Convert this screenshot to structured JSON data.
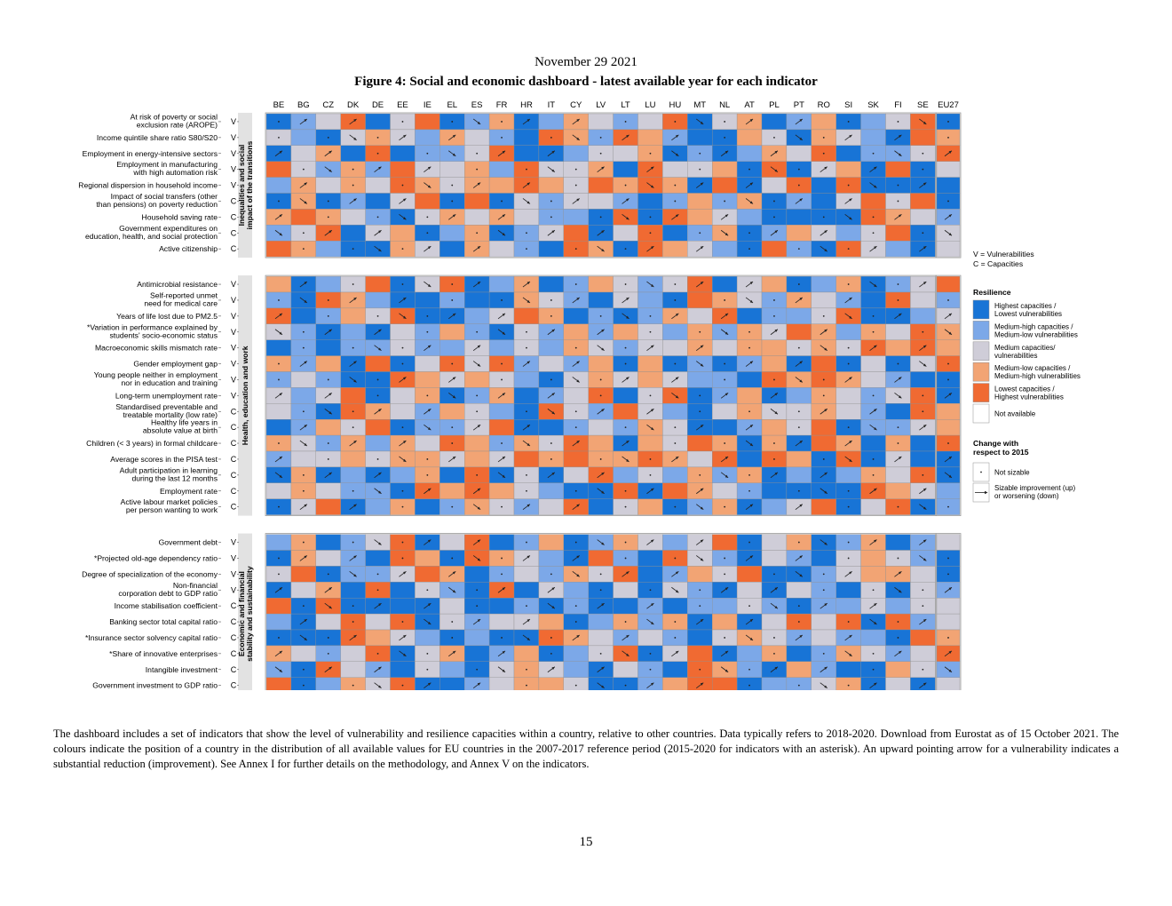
{
  "header": {
    "date": "November 29 2021",
    "title": "Figure 4: Social and economic dashboard - latest available year for each indicator"
  },
  "chart_data": {
    "type": "heatmap",
    "countries": [
      "BE",
      "BG",
      "CZ",
      "DK",
      "DE",
      "EE",
      "IE",
      "EL",
      "ES",
      "FR",
      "HR",
      "IT",
      "CY",
      "LV",
      "LT",
      "LU",
      "HU",
      "MT",
      "NL",
      "AT",
      "PL",
      "PT",
      "RO",
      "SI",
      "SK",
      "FI",
      "SE"
    ],
    "aggregate": "EU27",
    "legend": {
      "types": [
        "V = Vulnerabilities",
        "C = Capacities"
      ],
      "resilience_title": "Resilience",
      "resilience": [
        {
          "label": "Highest capacities / Lowest vulnerabilities",
          "color": "#1874d6"
        },
        {
          "label": "Medium-high capacities / Medium-low vulnerabilities",
          "color": "#7ca8e8"
        },
        {
          "label": "Medium capacities/ vulnerabilities",
          "color": "#cfcdd8"
        },
        {
          "label": "Medium-low capacities / Medium-high vulnerabilities",
          "color": "#f2a474"
        },
        {
          "label": "Lowest capacities / Highest vulnerabilities",
          "color": "#f06a32"
        },
        {
          "label": "Not available",
          "color": "#ffffff"
        }
      ],
      "change_title": "Change with respect to 2015",
      "change": [
        {
          "symbol": "·",
          "label": "Not sizable"
        },
        {
          "symbol": "→",
          "label": "Sizable improvement (up) or worsening (down)"
        }
      ]
    },
    "groups": [
      {
        "name": "Inequalities and social impact of the transitions",
        "indicators": [
          {
            "label": "At risk of poverty or social exclusion rate (AROPE)",
            "type": "V"
          },
          {
            "label": "Income quintile share ratio S80/S20",
            "type": "V"
          },
          {
            "label": "Employment in energy-intensive sectors",
            "type": "V"
          },
          {
            "label": "Employment in manufacturing with high automation risk",
            "type": "V"
          },
          {
            "label": "Regional dispersion in household income",
            "type": "V"
          },
          {
            "label": "Impact of social transfers (other than pensions) on poverty reduction",
            "type": "C"
          },
          {
            "label": "Household saving rate",
            "type": "C"
          },
          {
            "label": "Government expenditures on education, health, and social protection",
            "type": "C"
          },
          {
            "label": "Active citizenship",
            "type": "C"
          }
        ]
      },
      {
        "name": "Health, education and work",
        "indicators": [
          {
            "label": "Antimicrobial resistance",
            "type": "V"
          },
          {
            "label": "Self-reported unmet need for medical care",
            "type": "V"
          },
          {
            "label": "Years of life lost due to PM2.5",
            "type": "V"
          },
          {
            "label": "*Variation in performance explained by students' socio-economic status",
            "type": "V"
          },
          {
            "label": "Macroeconomic skills mismatch rate",
            "type": "V"
          },
          {
            "label": "Gender employment gap",
            "type": "V"
          },
          {
            "label": "Young people neither in employment nor in education and training",
            "type": "V"
          },
          {
            "label": "Long-term unemployment rate",
            "type": "V"
          },
          {
            "label": "Standardised preventable and treatable mortality (low rate)",
            "type": "C"
          },
          {
            "label": "Healthy life years in absolute value at birth",
            "type": "C"
          },
          {
            "label": "Children (< 3 years) in formal childcare",
            "type": "C"
          },
          {
            "label": "Average scores in the PISA test",
            "type": "C"
          },
          {
            "label": "Adult participation in learning during the last 12 months",
            "type": "C"
          },
          {
            "label": "Employment rate",
            "type": "C"
          },
          {
            "label": "Active labour market policies per person wanting to work",
            "type": "C"
          }
        ]
      },
      {
        "name": "Economic and financial stability and sustainability",
        "indicators": [
          {
            "label": "Government debt",
            "type": "V"
          },
          {
            "label": "*Projected old-age dependency ratio",
            "type": "V"
          },
          {
            "label": "Degree of specialization of the economy",
            "type": "V"
          },
          {
            "label": "Non-financial corporation debt to GDP ratio",
            "type": "V"
          },
          {
            "label": "Income stabilisation coefficient",
            "type": "C"
          },
          {
            "label": "Banking sector total capital ratio",
            "type": "C"
          },
          {
            "label": "*Insurance sector solvency capital ratio",
            "type": "C"
          },
          {
            "label": "*Share of innovative enterprises",
            "type": "C"
          },
          {
            "label": "Intangible investment",
            "type": "C"
          },
          {
            "label": "Government investment to GDP ratio",
            "type": "C"
          }
        ]
      }
    ]
  },
  "caption": "The dashboard includes a set of indicators that show the level of vulnerability and resilience capacities within a country, relative to other countries. Data typically refers to 2018-2020. Download from Eurostat as of 15 October 2021. The colours indicate the position of a country in the distribution of all available values for EU countries in the 2007-2017 reference period (2015-2020 for indicators with an asterisk). An upward pointing arrow for a vulnerability indicates a substantial reduction (improvement). See Annex I for further details on the methodology, and Annex V on the indicators.",
  "page_number": "15"
}
